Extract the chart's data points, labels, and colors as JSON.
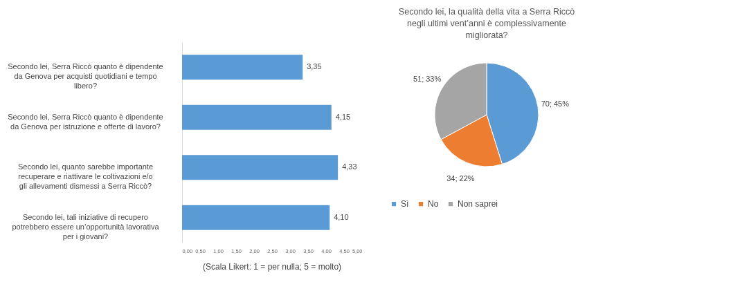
{
  "chart_data": [
    {
      "type": "bar",
      "orientation": "horizontal",
      "categories": [
        "Secondo lei, Serra Riccò quanto è dipendente da Genova per acquisti quotidiani e tempo libero?",
        "Secondo lei, Serra Riccò quanto è dipendente da Genova per istruzione e offerte di lavoro?",
        "Secondo lei, quanto sarebbe importante recuperare e riattivare le coltivazioni e/o gli allevamenti dismessi a Serra Riccò?",
        "Secondo lei, tali iniziative di recupero potrebbero essere un’opportunità lavorativa per i giovani?"
      ],
      "values": [
        3.35,
        4.15,
        4.33,
        4.1
      ],
      "value_labels": [
        "3,35",
        "4,15",
        "4,33",
        "4,10"
      ],
      "color": "#5b9bd5",
      "xlim": [
        0,
        5
      ],
      "xticks": [
        {
          "value": 0,
          "label": "0,00"
        },
        {
          "value": 0.5,
          "label": "0,50"
        },
        {
          "value": 1,
          "label": "1,00"
        },
        {
          "value": 1.5,
          "label": "1,50"
        },
        {
          "value": 2,
          "label": "2,00"
        },
        {
          "value": 2.5,
          "label": "2,50"
        },
        {
          "value": 3,
          "label": "3,00"
        },
        {
          "value": 3.5,
          "label": "3,50"
        },
        {
          "value": 4,
          "label": "4,00"
        },
        {
          "value": 4.5,
          "label": "4,50"
        },
        {
          "value": 5,
          "label": "5,00"
        }
      ],
      "grid": false,
      "annotations": [
        "(Scala Likert: 1 = per nulla; 5 = molto)"
      ]
    },
    {
      "type": "pie",
      "title": "Secondo lei, la qualità della vita a Serra Riccò negli ultimi vent’anni è complessivamente migliorata?",
      "categories": [
        "Sì",
        "No",
        "Non saprei"
      ],
      "values": [
        70,
        34,
        51
      ],
      "value_labels": [
        "70; 45%",
        "34; 22%",
        "51; 33%"
      ],
      "colors": [
        "#5b9bd5",
        "#ed7d31",
        "#a5a5a5"
      ],
      "legend": "bottom"
    }
  ]
}
